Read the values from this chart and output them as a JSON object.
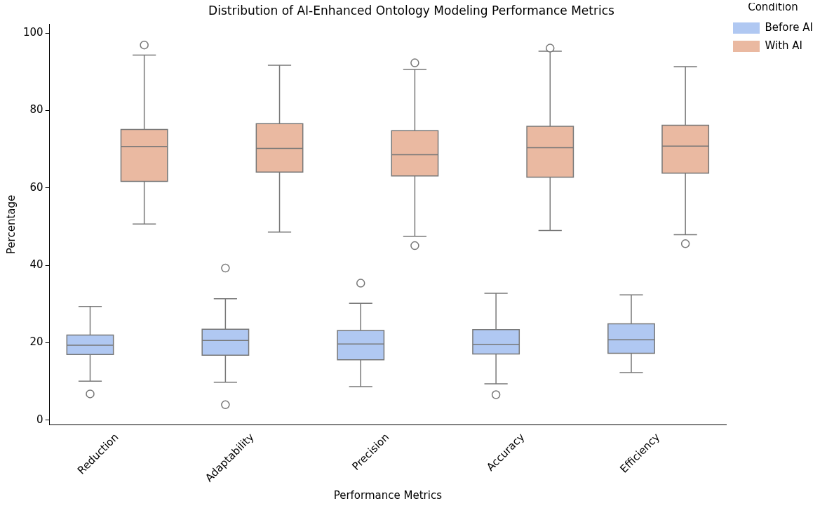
{
  "chart_data": {
    "type": "box",
    "title": "Distribution of AI-Enhanced Ontology Modeling Performance Metrics",
    "xlabel": "Performance Metrics",
    "ylabel": "Percentage",
    "legend_title": "Condition",
    "legend": "top right",
    "grid": false,
    "categories": [
      "Reduction",
      "Adaptability",
      "Precision",
      "Accuracy",
      "Efficiency"
    ],
    "ylim": [
      -1.2,
      102.3
    ],
    "yticks": [
      0,
      20,
      40,
      60,
      80,
      100
    ],
    "series": [
      {
        "name": "Before AI",
        "color": "#b0c8f2",
        "boxes": [
          {
            "low": 10.1,
            "q1": 17.0,
            "median": 19.4,
            "q3": 22.0,
            "high": 29.4,
            "outliers": [
              6.8
            ]
          },
          {
            "low": 9.8,
            "q1": 16.8,
            "median": 20.6,
            "q3": 23.5,
            "high": 31.4,
            "outliers": [
              39.3,
              4.0
            ]
          },
          {
            "low": 8.7,
            "q1": 15.6,
            "median": 19.7,
            "q3": 23.2,
            "high": 30.2,
            "outliers": [
              35.4
            ]
          },
          {
            "low": 9.4,
            "q1": 17.1,
            "median": 19.6,
            "q3": 23.4,
            "high": 32.8,
            "outliers": [
              6.6
            ]
          },
          {
            "low": 12.3,
            "q1": 17.3,
            "median": 20.8,
            "q3": 24.9,
            "high": 32.4
          }
        ]
      },
      {
        "name": "With AI",
        "color": "#eab9a1",
        "boxes": [
          {
            "low": 50.7,
            "q1": 61.7,
            "median": 70.7,
            "q3": 75.1,
            "high": 94.3,
            "outliers": [
              96.9
            ]
          },
          {
            "low": 48.6,
            "q1": 64.1,
            "median": 70.2,
            "q3": 76.6,
            "high": 91.7
          },
          {
            "low": 47.5,
            "q1": 63.1,
            "median": 68.6,
            "q3": 74.8,
            "high": 90.6,
            "outliers": [
              92.3,
              45.1
            ]
          },
          {
            "low": 49.0,
            "q1": 62.8,
            "median": 70.4,
            "q3": 75.9,
            "high": 95.3,
            "outliers": [
              96.1
            ]
          },
          {
            "low": 47.9,
            "q1": 63.8,
            "median": 70.8,
            "q3": 76.2,
            "high": 91.3,
            "outliers": [
              45.6
            ]
          }
        ]
      }
    ]
  }
}
